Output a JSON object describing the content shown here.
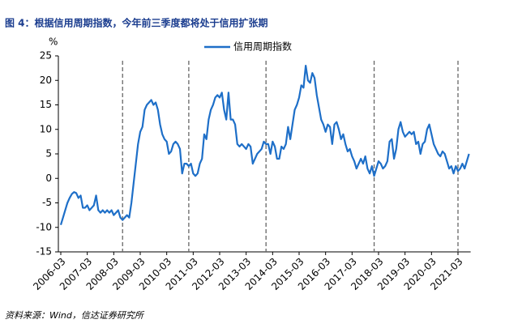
{
  "chart_data": {
    "type": "line",
    "title": "图 4：根据信用周期指数，今年前三季度都将处于信用扩张期",
    "y_unit": "%",
    "source": "资料来源：Wind，信达证券研究所",
    "x": [
      "2006-03",
      "2006-04",
      "2006-05",
      "2006-06",
      "2006-07",
      "2006-08",
      "2006-09",
      "2006-10",
      "2006-11",
      "2006-12",
      "2007-01",
      "2007-02",
      "2007-03",
      "2007-04",
      "2007-05",
      "2007-06",
      "2007-07",
      "2007-08",
      "2007-09",
      "2007-10",
      "2007-11",
      "2007-12",
      "2008-01",
      "2008-02",
      "2008-03",
      "2008-04",
      "2008-05",
      "2008-06",
      "2008-07",
      "2008-08",
      "2008-09",
      "2008-10",
      "2008-11",
      "2008-12",
      "2009-01",
      "2009-02",
      "2009-03",
      "2009-04",
      "2009-05",
      "2009-06",
      "2009-07",
      "2009-08",
      "2009-09",
      "2009-10",
      "2009-11",
      "2009-12",
      "2010-01",
      "2010-02",
      "2010-03",
      "2010-04",
      "2010-05",
      "2010-06",
      "2010-07",
      "2010-08",
      "2010-09",
      "2010-10",
      "2010-11",
      "2010-12",
      "2011-01",
      "2011-02",
      "2011-03",
      "2011-04",
      "2011-05",
      "2011-06",
      "2011-07",
      "2011-08",
      "2011-09",
      "2011-10",
      "2011-11",
      "2011-12",
      "2012-01",
      "2012-02",
      "2012-03",
      "2012-04",
      "2012-05",
      "2012-06",
      "2012-07",
      "2012-08",
      "2012-09",
      "2012-10",
      "2012-11",
      "2012-12",
      "2013-01",
      "2013-02",
      "2013-03",
      "2013-04",
      "2013-05",
      "2013-06",
      "2013-07",
      "2013-08",
      "2013-09",
      "2013-10",
      "2013-11",
      "2013-12",
      "2014-01",
      "2014-02",
      "2014-03",
      "2014-04",
      "2014-05",
      "2014-06",
      "2014-07",
      "2014-08",
      "2014-09",
      "2014-10",
      "2014-11",
      "2014-12",
      "2015-01",
      "2015-02",
      "2015-03",
      "2015-04",
      "2015-05",
      "2015-06",
      "2015-07",
      "2015-08",
      "2015-09",
      "2015-10",
      "2015-11",
      "2015-12",
      "2016-01",
      "2016-02",
      "2016-03",
      "2016-04",
      "2016-05",
      "2016-06",
      "2016-07",
      "2016-08",
      "2016-09",
      "2016-10",
      "2016-11",
      "2016-12",
      "2017-01",
      "2017-02",
      "2017-03",
      "2017-04",
      "2017-05",
      "2017-06",
      "2017-07",
      "2017-08",
      "2017-09",
      "2017-10",
      "2017-11",
      "2017-12",
      "2018-01",
      "2018-02",
      "2018-03",
      "2018-04",
      "2018-05",
      "2018-06",
      "2018-07",
      "2018-08",
      "2018-09",
      "2018-10",
      "2018-11",
      "2018-12",
      "2019-01",
      "2019-02",
      "2019-03",
      "2019-04",
      "2019-05",
      "2019-06",
      "2019-07",
      "2019-08",
      "2019-09",
      "2019-10",
      "2019-11",
      "2019-12",
      "2020-01",
      "2020-02",
      "2020-03",
      "2020-04",
      "2020-05",
      "2020-06",
      "2020-07",
      "2020-08",
      "2020-09",
      "2020-10",
      "2020-11",
      "2020-12",
      "2021-01",
      "2021-02",
      "2021-03",
      "2021-04",
      "2021-05",
      "2021-06",
      "2021-07",
      "2021-08"
    ],
    "series": [
      {
        "name": "信用周期指数",
        "color": "#1e6fc8",
        "values": [
          -9.5,
          -8,
          -6.5,
          -5,
          -4,
          -3.2,
          -2.8,
          -3,
          -4,
          -3.5,
          -6,
          -6,
          -5.5,
          -6.5,
          -6,
          -5.5,
          -3.5,
          -6.5,
          -7,
          -6.5,
          -7,
          -6.5,
          -7,
          -6.5,
          -7.5,
          -7,
          -6.5,
          -8,
          -8.5,
          -8,
          -7.5,
          -8,
          -5,
          -1,
          3,
          7,
          9.5,
          10.5,
          14,
          15,
          15.5,
          16,
          15,
          15.5,
          14,
          11,
          9,
          8,
          7.5,
          5,
          5.5,
          7,
          7.5,
          7,
          6,
          1,
          3,
          3,
          2.5,
          3,
          1,
          0.5,
          1,
          3,
          4,
          9,
          8,
          12,
          14,
          15,
          16.5,
          17,
          16.5,
          17.5,
          14,
          12,
          17.5,
          12,
          12,
          11,
          7,
          6.5,
          7,
          6.5,
          6,
          7,
          6.5,
          3,
          4,
          5,
          5.5,
          6,
          7.5,
          7,
          7,
          5,
          7.5,
          6.5,
          4,
          4,
          6.5,
          6,
          7,
          10.5,
          8,
          11,
          14,
          15,
          16.5,
          19,
          18.5,
          23,
          20,
          19.5,
          21.5,
          20.5,
          17,
          14.5,
          12,
          11,
          9.5,
          11,
          10.5,
          7,
          11,
          11.5,
          10,
          8,
          9,
          7,
          5.5,
          6,
          4.5,
          3.5,
          2,
          3,
          4,
          3,
          4.5,
          2,
          1,
          2.5,
          0.5,
          2,
          3.5,
          3,
          2,
          2.5,
          3.5,
          7.5,
          8,
          4,
          6,
          10,
          11.5,
          9.5,
          8.5,
          9,
          9.5,
          9,
          9.5,
          7,
          7.5,
          5,
          7,
          7.5,
          10,
          11,
          9,
          7,
          6,
          5,
          4.5,
          5.5,
          5,
          3.5,
          2,
          2.5,
          1,
          2.5,
          1.5,
          2,
          3,
          2,
          3.5,
          5
        ]
      }
    ],
    "xticks": [
      "2006-03",
      "2007-03",
      "2008-03",
      "2009-03",
      "2010-03",
      "2011-03",
      "2012-03",
      "2013-03",
      "2014-03",
      "2015-03",
      "2016-03",
      "2017-03",
      "2018-03",
      "2019-03",
      "2020-03",
      "2021-03"
    ],
    "vlines": [
      "2008-07",
      "2011-01",
      "2013-12",
      "2018-01",
      "2021-03"
    ],
    "ylim": [
      -15,
      25
    ],
    "yticks": [
      -15,
      -10,
      -5,
      0,
      5,
      10,
      15,
      20,
      25
    ],
    "legend": "top",
    "grid": false
  }
}
